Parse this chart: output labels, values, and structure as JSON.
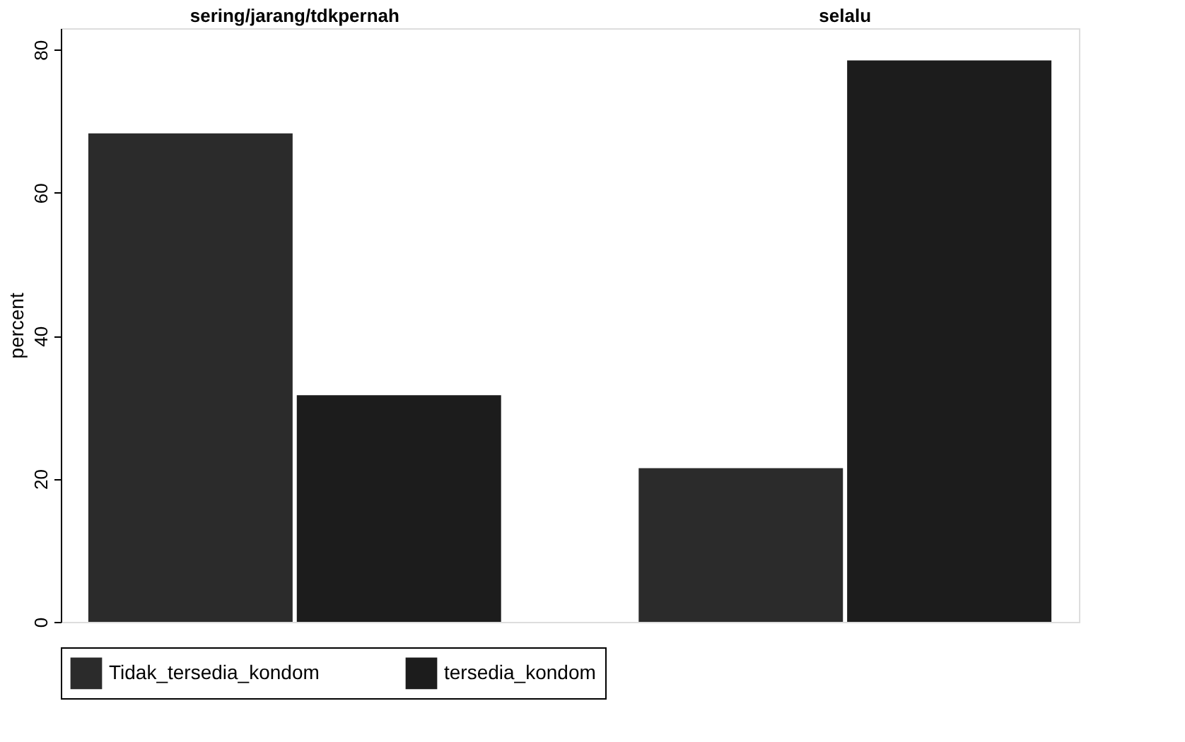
{
  "chart_data": {
    "type": "bar",
    "ylabel": "percent",
    "categories": [
      "sering/jarang/tdkpernah",
      "selalu"
    ],
    "series": [
      {
        "name": "Tidak_tersedia_kondom",
        "color": "#2b2b2b",
        "values": [
          68.3,
          21.5
        ]
      },
      {
        "name": "tersedia_kondom",
        "color": "#1c1c1c",
        "values": [
          31.7,
          78.5
        ]
      }
    ],
    "ylim": [
      0,
      83
    ],
    "yticks": [
      0,
      20,
      40,
      60,
      80
    ],
    "grid": false,
    "legend": "bottom"
  }
}
